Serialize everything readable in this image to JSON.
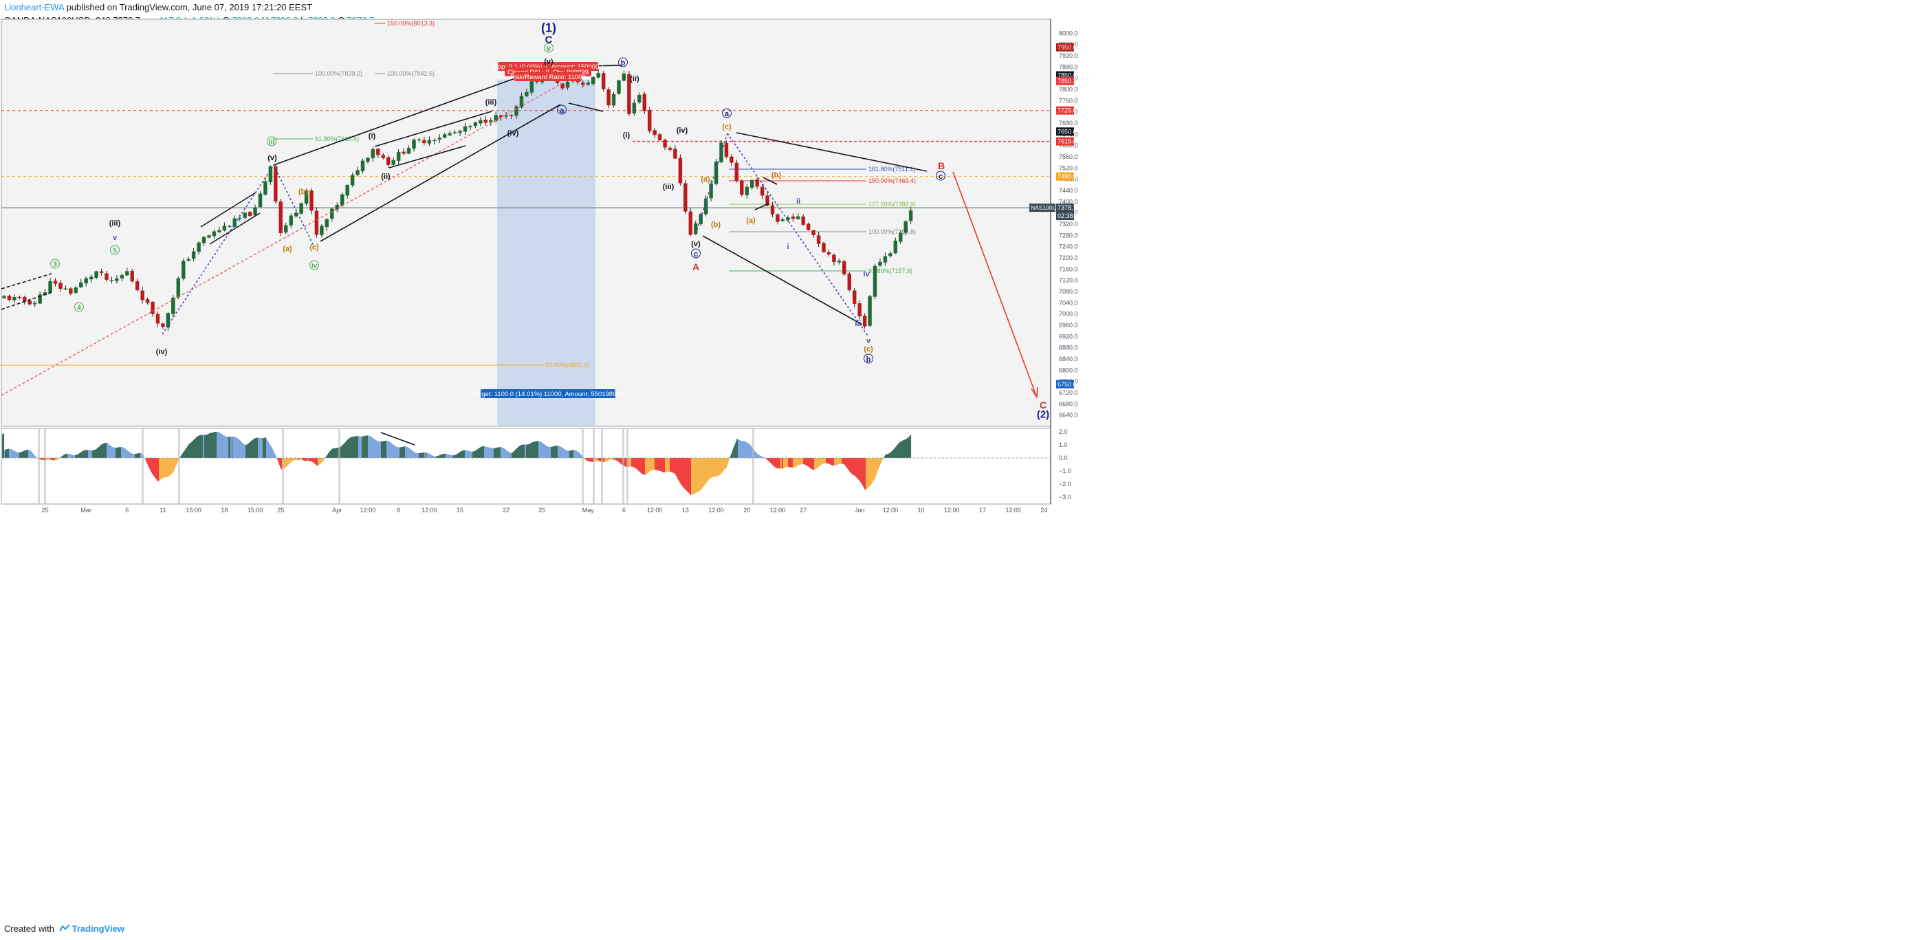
{
  "header": {
    "author": "Lionheart-EWA",
    "published": " published on TradingView.com, June 07, 2019 17:21:20 EEST",
    "symbol": "OANDA:NAS100USD, 240",
    "last": "7378.7",
    "change": "▲ +117.8 (+1.62%)",
    "o_label": "O:",
    "o": "7308.0",
    "h_label": "H:",
    "h": "7386.8",
    "l_label": "L:",
    "l": "7302.8",
    "c_label": "C:",
    "c": "7378.7"
  },
  "footer": {
    "created": "Created with",
    "brand": "TradingView"
  },
  "colors": {
    "up": "#26a69a",
    "down": "#ef5350",
    "wave_green": "#4caf50",
    "wave_orange": "#c07a10",
    "wave_navy": "#1a237e",
    "wave_red": "#d32f2f",
    "target_bg": "#c5d3ea",
    "target_label": "#1565c0",
    "stop_label": "#e53935",
    "osc_green": "#3c6e60",
    "osc_blue": "#7ea7e0",
    "osc_red": "#f23f3f",
    "osc_orange": "#f6b44a"
  },
  "chart_data": {
    "type": "candlestick",
    "instrument": "NAS100USD",
    "timeframe": "240",
    "ylim": [
      6600,
      8050
    ],
    "yticks": [
      8000,
      7960,
      7920,
      7880,
      7840,
      7800,
      7760,
      7720,
      7680,
      7640,
      7600,
      7560,
      7520,
      7480,
      7440,
      7400,
      7360,
      7320,
      7280,
      7240,
      7200,
      7160,
      7120,
      7080,
      7040,
      7000,
      6960,
      6920,
      6880,
      6840,
      6800,
      6760,
      6720,
      6680,
      6640
    ],
    "xticks": [
      {
        "i": 8,
        "label": "25"
      },
      {
        "i": 16,
        "label": "Mar"
      },
      {
        "i": 24,
        "label": "6"
      },
      {
        "i": 31,
        "label": "11"
      },
      {
        "i": 37,
        "label": "15:00"
      },
      {
        "i": 43,
        "label": "18"
      },
      {
        "i": 49,
        "label": "15:00"
      },
      {
        "i": 54,
        "label": "25"
      },
      {
        "i": 65,
        "label": "Apr"
      },
      {
        "i": 71,
        "label": "12:00"
      },
      {
        "i": 77,
        "label": "8"
      },
      {
        "i": 83,
        "label": "12:00"
      },
      {
        "i": 89,
        "label": "15"
      },
      {
        "i": 98,
        "label": "22"
      },
      {
        "i": 105,
        "label": "25"
      },
      {
        "i": 114,
        "label": "May"
      },
      {
        "i": 121,
        "label": "6"
      },
      {
        "i": 127,
        "label": "12:00"
      },
      {
        "i": 133,
        "label": "13"
      },
      {
        "i": 139,
        "label": "12:00"
      },
      {
        "i": 145,
        "label": "20"
      },
      {
        "i": 151,
        "label": "12:00"
      },
      {
        "i": 156,
        "label": "27"
      },
      {
        "i": 167,
        "label": "Jun"
      },
      {
        "i": 173,
        "label": "12:00"
      },
      {
        "i": 179,
        "label": "10"
      },
      {
        "i": 185,
        "label": "12:00"
      },
      {
        "i": 191,
        "label": "17"
      },
      {
        "i": 197,
        "label": "12:00"
      },
      {
        "i": 203,
        "label": "24"
      }
    ],
    "anchors": [
      [
        0,
        7060
      ],
      [
        6,
        7040
      ],
      [
        9,
        7110
      ],
      [
        13,
        7080
      ],
      [
        18,
        7150
      ],
      [
        21,
        7110
      ],
      [
        24,
        7150
      ],
      [
        27,
        7060
      ],
      [
        31,
        6950
      ],
      [
        35,
        7180
      ],
      [
        39,
        7270
      ],
      [
        44,
        7320
      ],
      [
        49,
        7370
      ],
      [
        52,
        7530
      ],
      [
        54,
        7290
      ],
      [
        57,
        7370
      ],
      [
        59,
        7440
      ],
      [
        61,
        7280
      ],
      [
        66,
        7420
      ],
      [
        69,
        7520
      ],
      [
        72,
        7590
      ],
      [
        75,
        7540
      ],
      [
        80,
        7610
      ],
      [
        89,
        7650
      ],
      [
        95,
        7700
      ],
      [
        99,
        7700
      ],
      [
        103,
        7830
      ],
      [
        107,
        7860
      ],
      [
        109,
        7800
      ],
      [
        111,
        7840
      ],
      [
        113,
        7810
      ],
      [
        116,
        7860
      ],
      [
        118,
        7750
      ],
      [
        121,
        7860
      ],
      [
        122,
        7720
      ],
      [
        124,
        7780
      ],
      [
        126,
        7660
      ],
      [
        129,
        7600
      ],
      [
        131,
        7560
      ],
      [
        134,
        7280
      ],
      [
        136,
        7360
      ],
      [
        138,
        7470
      ],
      [
        140,
        7600
      ],
      [
        142,
        7540
      ],
      [
        144,
        7420
      ],
      [
        146,
        7470
      ],
      [
        148,
        7420
      ],
      [
        151,
        7330
      ],
      [
        154,
        7350
      ],
      [
        157,
        7310
      ],
      [
        160,
        7230
      ],
      [
        163,
        7180
      ],
      [
        167,
        7000
      ],
      [
        168,
        6950
      ],
      [
        170,
        7180
      ],
      [
        173,
        7220
      ],
      [
        175,
        7280
      ],
      [
        177,
        7379
      ]
    ],
    "current": {
      "price": "7378.7",
      "label": "NAS100USD",
      "countdown": "02:38:49"
    },
    "price_tags": [
      {
        "price": 7950,
        "label": "7950.0",
        "color": "#b71c1c"
      },
      {
        "price": 7850,
        "label": "7850.0",
        "color": "#131722"
      },
      {
        "price": 7830,
        "label": "7850.1",
        "color": "#e53935"
      },
      {
        "price": 7725,
        "label": "7725.0",
        "color": "#e53935"
      },
      {
        "price": 7650,
        "label": "7650.0",
        "color": "#131722"
      },
      {
        "price": 7615,
        "label": "7615.0",
        "color": "#e53935"
      },
      {
        "price": 7490,
        "label": "7490.0",
        "color": "#f6a623"
      },
      {
        "price": 6750,
        "label": "6750.0",
        "color": "#1565c0"
      }
    ],
    "fib_labels": [
      {
        "text": "150.00%(8013.3)",
        "color": "#e53935",
        "x1": 545,
        "x2": 560,
        "y": 34
      },
      {
        "text": "100.00%(7839.2)",
        "color": "#888888",
        "x1": 397,
        "x2": 455,
        "y": 107
      },
      {
        "text": "100.00%(7842.6)",
        "color": "#888888",
        "x1": 545,
        "x2": 560,
        "y": 107
      },
      {
        "text": "61.80%(7615.4)",
        "color": "#4caf50",
        "x1": 397,
        "x2": 455,
        "y": 202
      },
      {
        "text": "50.00%(6831.4)",
        "color": "#f6a623",
        "x1": 0,
        "x2": 790,
        "y": 531
      },
      {
        "text": "161.80%(7511.1)",
        "color": "#3f51b5",
        "x1": 1060,
        "x2": 1260,
        "y": 246
      },
      {
        "text": "150.00%(7469.4)",
        "color": "#e53935",
        "x1": 1060,
        "x2": 1260,
        "y": 263
      },
      {
        "text": "127.20%(7388.9)",
        "color": "#8bc34a",
        "x1": 1060,
        "x2": 1260,
        "y": 297
      },
      {
        "text": "100.00%(7292.8)",
        "color": "#888888",
        "x1": 1060,
        "x2": 1260,
        "y": 337
      },
      {
        "text": "61.80%(7157.9)",
        "color": "#4caf50",
        "x1": 1060,
        "x2": 1260,
        "y": 394
      }
    ],
    "wave_labels": [
      {
        "text": "(1)",
        "x": 798,
        "y": 40,
        "color": "#1a237e",
        "size": 18
      },
      {
        "text": "C",
        "x": 798,
        "y": 57,
        "color": "#1a237e",
        "size": 15
      },
      {
        "text": "v",
        "x": 798,
        "y": 70,
        "color": "#4caf50",
        "size": 12,
        "circle": true
      },
      {
        "text": "(v)",
        "x": 798,
        "y": 89,
        "color": "#131722",
        "size": 11
      },
      {
        "text": "b",
        "x": 906,
        "y": 91,
        "color": "#1a237e",
        "size": 11,
        "circle": true
      },
      {
        "text": "(ii)",
        "x": 923,
        "y": 114,
        "color": "#131722",
        "size": 11
      },
      {
        "text": "(iii)",
        "x": 714,
        "y": 148,
        "color": "#131722",
        "size": 11
      },
      {
        "text": "a",
        "x": 817,
        "y": 160,
        "color": "#1a237e",
        "size": 11,
        "circle": true
      },
      {
        "text": "(iv)",
        "x": 746,
        "y": 193,
        "color": "#131722",
        "size": 11
      },
      {
        "text": "(i)",
        "x": 911,
        "y": 196,
        "color": "#131722",
        "size": 11
      },
      {
        "text": "(i)",
        "x": 541,
        "y": 197,
        "color": "#131722",
        "size": 11
      },
      {
        "text": "iii",
        "x": 395,
        "y": 206,
        "color": "#4caf50",
        "size": 11,
        "circle": true
      },
      {
        "text": "(v)",
        "x": 396,
        "y": 229,
        "color": "#131722",
        "size": 11
      },
      {
        "text": "(ii)",
        "x": 561,
        "y": 256,
        "color": "#131722",
        "size": 11
      },
      {
        "text": "(b)",
        "x": 441,
        "y": 278,
        "color": "#c07a10",
        "size": 11
      },
      {
        "text": "(iii)",
        "x": 167,
        "y": 324,
        "color": "#131722",
        "size": 11
      },
      {
        "text": "v",
        "x": 167,
        "y": 345,
        "color": "#3f51b5",
        "size": 11
      },
      {
        "text": "(c)",
        "x": 457,
        "y": 359,
        "color": "#c07a10",
        "size": 11
      },
      {
        "text": "(a)",
        "x": 418,
        "y": 361,
        "color": "#c07a10",
        "size": 11
      },
      {
        "text": "5",
        "x": 167,
        "y": 364,
        "color": "#4caf50",
        "size": 10,
        "circle": true
      },
      {
        "text": "iv",
        "x": 457,
        "y": 386,
        "color": "#4caf50",
        "size": 10,
        "circle": true
      },
      {
        "text": "3",
        "x": 80,
        "y": 384,
        "color": "#4caf50",
        "size": 10,
        "circle": true
      },
      {
        "text": "4",
        "x": 115,
        "y": 447,
        "color": "#4caf50",
        "size": 10,
        "circle": true
      },
      {
        "text": "(iv)",
        "x": 235,
        "y": 511,
        "color": "#131722",
        "size": 11
      },
      {
        "text": "a",
        "x": 1057,
        "y": 165,
        "color": "#1a237e",
        "size": 11,
        "circle": true
      },
      {
        "text": "(c)",
        "x": 1057,
        "y": 184,
        "color": "#c07a10",
        "size": 11
      },
      {
        "text": "(iv)",
        "x": 992,
        "y": 189,
        "color": "#131722",
        "size": 11
      },
      {
        "text": "(iii)",
        "x": 972,
        "y": 271,
        "color": "#131722",
        "size": 11
      },
      {
        "text": "(a)",
        "x": 1026,
        "y": 260,
        "color": "#c07a10",
        "size": 11
      },
      {
        "text": "(b)",
        "x": 1041,
        "y": 326,
        "color": "#c07a10",
        "size": 11
      },
      {
        "text": "(v)",
        "x": 1012,
        "y": 354,
        "color": "#131722",
        "size": 11
      },
      {
        "text": "c",
        "x": 1012,
        "y": 369,
        "color": "#1a237e",
        "size": 11,
        "circle": true
      },
      {
        "text": "A",
        "x": 1012,
        "y": 388,
        "color": "#d32f2f",
        "size": 14
      },
      {
        "text": "(b)",
        "x": 1129,
        "y": 254,
        "color": "#c07a10",
        "size": 11
      },
      {
        "text": "(a)",
        "x": 1092,
        "y": 320,
        "color": "#c07a10",
        "size": 11
      },
      {
        "text": "ii",
        "x": 1161,
        "y": 292,
        "color": "#3f51b5",
        "size": 11
      },
      {
        "text": "i",
        "x": 1146,
        "y": 358,
        "color": "#3f51b5",
        "size": 11
      },
      {
        "text": "iv",
        "x": 1260,
        "y": 398,
        "color": "#3f51b5",
        "size": 11
      },
      {
        "text": "iii",
        "x": 1248,
        "y": 470,
        "color": "#3f51b5",
        "size": 11
      },
      {
        "text": "v",
        "x": 1263,
        "y": 495,
        "color": "#3f51b5",
        "size": 11
      },
      {
        "text": "(c)",
        "x": 1263,
        "y": 507,
        "color": "#c07a10",
        "size": 11
      },
      {
        "text": "b",
        "x": 1263,
        "y": 522,
        "color": "#1a237e",
        "size": 11,
        "circle": true
      },
      {
        "text": "B",
        "x": 1369,
        "y": 241,
        "color": "#d32f2f",
        "size": 14
      },
      {
        "text": "c",
        "x": 1368,
        "y": 256,
        "color": "#1a237e",
        "size": 11,
        "circle": true
      },
      {
        "text": "C",
        "x": 1517,
        "y": 589,
        "color": "#d32f2f",
        "size": 14
      },
      {
        "text": "(2)",
        "x": 1517,
        "y": 602,
        "color": "#1a237e",
        "size": 15
      }
    ],
    "position": {
      "stop": "Stop: 0.1 (0.00%) 1, Amount: 150000.1",
      "closed": "Closed P&L: 0, Qty: 999999",
      "rr": "Risk/Reward Ratio: 11000",
      "target": "Target: 1100.0 (14.01%) 11000, Amount: 550198900"
    },
    "oscillator": {
      "yticks": [
        "2.0",
        "1.0",
        "0.0",
        "−1.0",
        "−2.0",
        "−3.0"
      ],
      "anchors": [
        [
          0,
          0.6
        ],
        [
          5,
          0.5
        ],
        [
          8,
          -0.3
        ],
        [
          12,
          0.2
        ],
        [
          16,
          0.5
        ],
        [
          20,
          1.1
        ],
        [
          23,
          0.7
        ],
        [
          27,
          0.2
        ],
        [
          30,
          -1.9
        ],
        [
          33,
          -1.0
        ],
        [
          36,
          1.2
        ],
        [
          40,
          2.0
        ],
        [
          44,
          1.7
        ],
        [
          47,
          1.1
        ],
        [
          51,
          1.7
        ],
        [
          54,
          -0.8
        ],
        [
          58,
          0.0
        ],
        [
          61,
          -0.6
        ],
        [
          64,
          0.6
        ],
        [
          69,
          1.8
        ],
        [
          73,
          1.4
        ],
        [
          78,
          0.8
        ],
        [
          82,
          0.3
        ],
        [
          86,
          0.2
        ],
        [
          90,
          0.5
        ],
        [
          95,
          0.9
        ],
        [
          99,
          0.5
        ],
        [
          103,
          1.3
        ],
        [
          107,
          0.9
        ],
        [
          111,
          0.6
        ],
        [
          115,
          -0.4
        ],
        [
          118,
          -0.1
        ],
        [
          121,
          -0.5
        ],
        [
          125,
          -1.2
        ],
        [
          128,
          -0.9
        ],
        [
          131,
          -1.3
        ],
        [
          134,
          -3.0
        ],
        [
          138,
          -1.6
        ],
        [
          141,
          -0.8
        ],
        [
          143,
          1.6
        ],
        [
          146,
          0.8
        ],
        [
          149,
          -0.3
        ],
        [
          152,
          -0.9
        ],
        [
          155,
          -0.5
        ],
        [
          158,
          -0.8
        ],
        [
          161,
          -0.4
        ],
        [
          164,
          -0.6
        ],
        [
          166,
          -1.3
        ],
        [
          168,
          -2.5
        ],
        [
          170,
          -1.5
        ],
        [
          172,
          0.3
        ],
        [
          174,
          0.8
        ],
        [
          177,
          1.9
        ]
      ]
    }
  }
}
